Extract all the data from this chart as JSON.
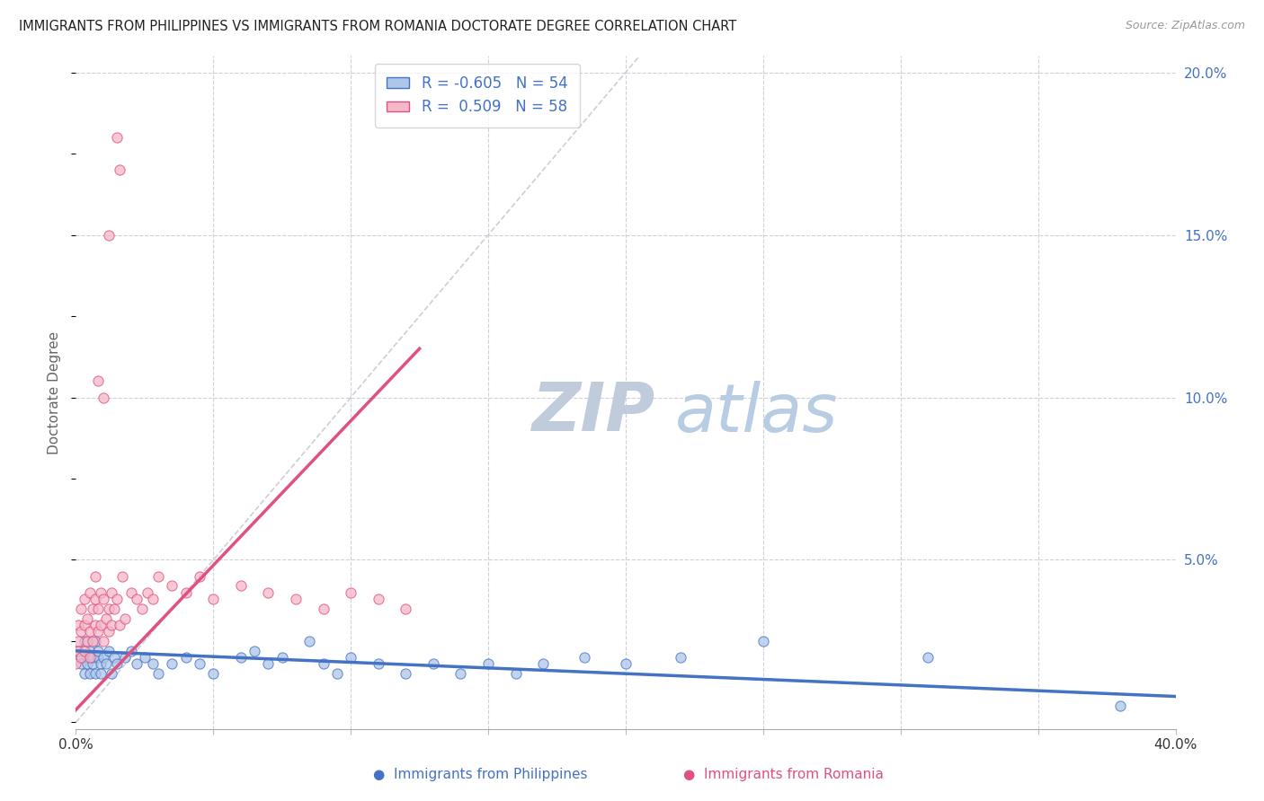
{
  "title": "IMMIGRANTS FROM PHILIPPINES VS IMMIGRANTS FROM ROMANIA DOCTORATE DEGREE CORRELATION CHART",
  "source": "Source: ZipAtlas.com",
  "ylabel": "Doctorate Degree",
  "xmin": 0.0,
  "xmax": 0.4,
  "ymin": -0.002,
  "ymax": 0.205,
  "color_philippines": "#aec6e8",
  "color_romania": "#f4b8c8",
  "line_color_philippines": "#4472c4",
  "line_color_romania": "#e05080",
  "diag_line_color": "#c8c8d8",
  "legend_text_color": "#4472c4",
  "title_color": "#222222",
  "source_color": "#999999",
  "watermark_zip_color": "#c8d8f0",
  "watermark_atlas_color": "#b0c8e8",
  "philippines_x": [
    0.001,
    0.002,
    0.002,
    0.003,
    0.003,
    0.004,
    0.004,
    0.005,
    0.005,
    0.006,
    0.006,
    0.007,
    0.007,
    0.008,
    0.008,
    0.009,
    0.009,
    0.01,
    0.011,
    0.012,
    0.013,
    0.014,
    0.015,
    0.018,
    0.02,
    0.022,
    0.025,
    0.028,
    0.03,
    0.035,
    0.04,
    0.045,
    0.05,
    0.06,
    0.065,
    0.07,
    0.075,
    0.085,
    0.09,
    0.095,
    0.1,
    0.11,
    0.12,
    0.13,
    0.14,
    0.15,
    0.16,
    0.17,
    0.185,
    0.2,
    0.22,
    0.25,
    0.31,
    0.38
  ],
  "philippines_y": [
    0.022,
    0.02,
    0.018,
    0.025,
    0.015,
    0.02,
    0.018,
    0.022,
    0.015,
    0.018,
    0.02,
    0.025,
    0.015,
    0.02,
    0.022,
    0.018,
    0.015,
    0.02,
    0.018,
    0.022,
    0.015,
    0.02,
    0.018,
    0.02,
    0.022,
    0.018,
    0.02,
    0.018,
    0.015,
    0.018,
    0.02,
    0.018,
    0.015,
    0.02,
    0.022,
    0.018,
    0.02,
    0.025,
    0.018,
    0.015,
    0.02,
    0.018,
    0.015,
    0.018,
    0.015,
    0.018,
    0.015,
    0.018,
    0.02,
    0.018,
    0.02,
    0.025,
    0.02,
    0.005
  ],
  "romania_x": [
    0.0,
    0.001,
    0.001,
    0.001,
    0.002,
    0.002,
    0.002,
    0.003,
    0.003,
    0.003,
    0.004,
    0.004,
    0.005,
    0.005,
    0.005,
    0.006,
    0.006,
    0.007,
    0.007,
    0.007,
    0.008,
    0.008,
    0.009,
    0.009,
    0.01,
    0.01,
    0.011,
    0.012,
    0.012,
    0.013,
    0.013,
    0.014,
    0.015,
    0.016,
    0.017,
    0.018,
    0.02,
    0.022,
    0.024,
    0.026,
    0.028,
    0.03,
    0.035,
    0.04,
    0.045,
    0.05,
    0.06,
    0.07,
    0.08,
    0.09,
    0.1,
    0.11,
    0.12,
    0.01,
    0.012,
    0.015,
    0.008,
    0.016
  ],
  "romania_y": [
    0.018,
    0.022,
    0.025,
    0.03,
    0.02,
    0.028,
    0.035,
    0.022,
    0.03,
    0.038,
    0.025,
    0.032,
    0.02,
    0.028,
    0.04,
    0.025,
    0.035,
    0.03,
    0.038,
    0.045,
    0.028,
    0.035,
    0.03,
    0.04,
    0.025,
    0.038,
    0.032,
    0.028,
    0.035,
    0.03,
    0.04,
    0.035,
    0.038,
    0.03,
    0.045,
    0.032,
    0.04,
    0.038,
    0.035,
    0.04,
    0.038,
    0.045,
    0.042,
    0.04,
    0.045,
    0.038,
    0.042,
    0.04,
    0.038,
    0.035,
    0.04,
    0.038,
    0.035,
    0.1,
    0.15,
    0.18,
    0.105,
    0.17
  ],
  "philippines_line_x": [
    0.0,
    0.4
  ],
  "philippines_line_y": [
    0.022,
    0.008
  ],
  "romania_line_x": [
    -0.001,
    0.125
  ],
  "romania_line_y": [
    0.003,
    0.115
  ],
  "diag_line_x": [
    0.0,
    0.205
  ],
  "diag_line_y": [
    0.0,
    0.205
  ],
  "legend_label1": "R = -0.605   N = 54",
  "legend_label2": "R =  0.509   N = 58"
}
